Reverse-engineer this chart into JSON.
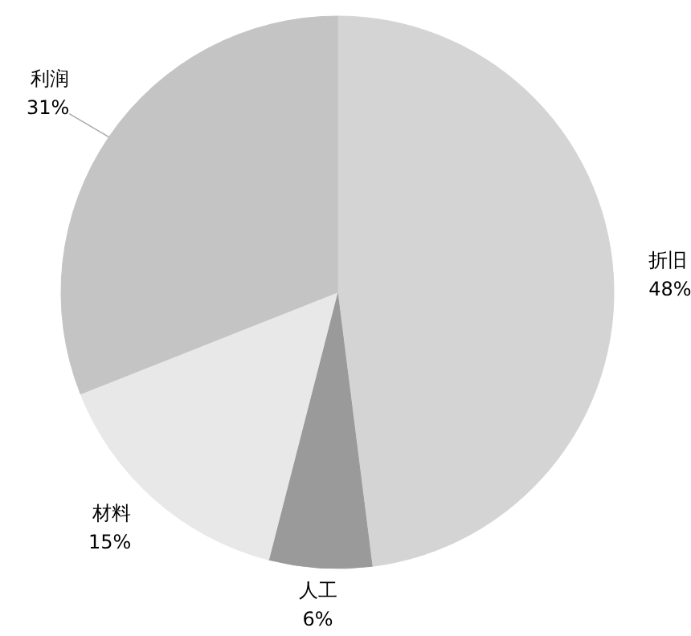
{
  "chart_data": {
    "type": "pie",
    "categories": [
      "折旧",
      "人工",
      "材料",
      "利润"
    ],
    "values": [
      48,
      6,
      15,
      31
    ],
    "value_labels": [
      "48%",
      "6%",
      "15%",
      "31%"
    ],
    "colors": [
      "#d4d4d4",
      "#9a9a9a",
      "#e8e8e8",
      "#c4c4c4"
    ],
    "legend": false
  }
}
